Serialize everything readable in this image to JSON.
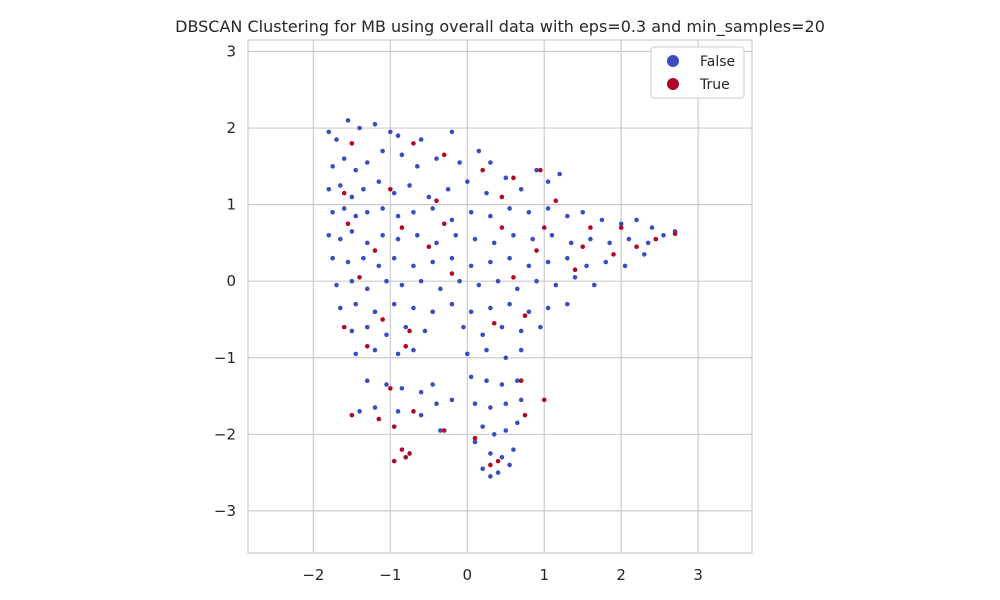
{
  "chart_data": {
    "type": "scatter",
    "title": "DBSCAN Clustering for MB using overall data with eps=0.3 and min_samples=20",
    "xlabel": "",
    "ylabel": "",
    "xlim": [
      -2.85,
      3.7
    ],
    "ylim": [
      -3.55,
      3.15
    ],
    "xticks": [
      -2,
      -1,
      0,
      1,
      2,
      3
    ],
    "yticks": [
      -3,
      -2,
      -1,
      0,
      1,
      2,
      3
    ],
    "xtick_labels": [
      "−2",
      "−1",
      "0",
      "1",
      "2",
      "3"
    ],
    "ytick_labels": [
      "−3",
      "−2",
      "−1",
      "0",
      "1",
      "2",
      "3"
    ],
    "grid": true,
    "legend_position": "top-right",
    "colors": {
      "False": "#3b4cc0",
      "True": "#b40426"
    },
    "series": [
      {
        "name": "False",
        "color": "#3b4cc0",
        "points": [
          [
            -1.8,
            1.95
          ],
          [
            -1.7,
            1.85
          ],
          [
            -1.55,
            2.1
          ],
          [
            -1.4,
            2.0
          ],
          [
            -1.2,
            2.05
          ],
          [
            -1.0,
            1.95
          ],
          [
            -0.9,
            1.9
          ],
          [
            -0.6,
            1.85
          ],
          [
            -0.2,
            1.95
          ],
          [
            -1.75,
            1.5
          ],
          [
            -1.6,
            1.6
          ],
          [
            -1.45,
            1.45
          ],
          [
            -1.3,
            1.55
          ],
          [
            -1.1,
            1.7
          ],
          [
            -0.85,
            1.65
          ],
          [
            -0.65,
            1.5
          ],
          [
            -0.4,
            1.6
          ],
          [
            -0.1,
            1.55
          ],
          [
            0.15,
            1.7
          ],
          [
            0.3,
            1.55
          ],
          [
            -1.8,
            1.2
          ],
          [
            -1.65,
            1.25
          ],
          [
            -1.5,
            1.1
          ],
          [
            -1.35,
            1.2
          ],
          [
            -1.15,
            1.3
          ],
          [
            -0.95,
            1.15
          ],
          [
            -0.75,
            1.25
          ],
          [
            -0.5,
            1.1
          ],
          [
            -0.25,
            1.2
          ],
          [
            0.0,
            1.3
          ],
          [
            0.25,
            1.15
          ],
          [
            0.5,
            1.35
          ],
          [
            0.7,
            1.2
          ],
          [
            0.9,
            1.45
          ],
          [
            1.05,
            1.3
          ],
          [
            1.2,
            1.4
          ],
          [
            -1.75,
            0.9
          ],
          [
            -1.6,
            0.95
          ],
          [
            -1.45,
            0.85
          ],
          [
            -1.3,
            0.9
          ],
          [
            -1.1,
            0.95
          ],
          [
            -0.9,
            0.85
          ],
          [
            -0.7,
            0.9
          ],
          [
            -0.45,
            0.95
          ],
          [
            -0.2,
            0.8
          ],
          [
            0.05,
            0.9
          ],
          [
            0.3,
            0.85
          ],
          [
            0.55,
            0.95
          ],
          [
            0.8,
            0.9
          ],
          [
            1.05,
            0.95
          ],
          [
            1.3,
            0.85
          ],
          [
            1.5,
            0.9
          ],
          [
            1.75,
            0.8
          ],
          [
            2.0,
            0.75
          ],
          [
            2.2,
            0.8
          ],
          [
            2.4,
            0.7
          ],
          [
            -1.8,
            0.6
          ],
          [
            -1.65,
            0.55
          ],
          [
            -1.5,
            0.65
          ],
          [
            -1.3,
            0.5
          ],
          [
            -1.1,
            0.6
          ],
          [
            -0.9,
            0.55
          ],
          [
            -0.65,
            0.6
          ],
          [
            -0.4,
            0.5
          ],
          [
            -0.15,
            0.6
          ],
          [
            0.1,
            0.55
          ],
          [
            0.35,
            0.5
          ],
          [
            0.6,
            0.6
          ],
          [
            0.85,
            0.55
          ],
          [
            1.1,
            0.6
          ],
          [
            1.35,
            0.5
          ],
          [
            1.6,
            0.55
          ],
          [
            1.85,
            0.5
          ],
          [
            2.1,
            0.55
          ],
          [
            2.35,
            0.5
          ],
          [
            2.55,
            0.6
          ],
          [
            2.7,
            0.65
          ],
          [
            -1.75,
            0.3
          ],
          [
            -1.55,
            0.25
          ],
          [
            -1.35,
            0.3
          ],
          [
            -1.15,
            0.2
          ],
          [
            -0.95,
            0.3
          ],
          [
            -0.7,
            0.2
          ],
          [
            -0.45,
            0.25
          ],
          [
            -0.2,
            0.3
          ],
          [
            0.05,
            0.2
          ],
          [
            0.3,
            0.25
          ],
          [
            0.55,
            0.3
          ],
          [
            0.8,
            0.2
          ],
          [
            1.05,
            0.25
          ],
          [
            1.3,
            0.3
          ],
          [
            1.55,
            0.2
          ],
          [
            1.8,
            0.25
          ],
          [
            2.05,
            0.2
          ],
          [
            2.3,
            0.35
          ],
          [
            -1.7,
            -0.05
          ],
          [
            -1.5,
            0.0
          ],
          [
            -1.3,
            -0.1
          ],
          [
            -1.05,
            0.0
          ],
          [
            -0.85,
            -0.05
          ],
          [
            -0.6,
            0.0
          ],
          [
            -0.35,
            -0.1
          ],
          [
            -0.1,
            0.0
          ],
          [
            0.15,
            -0.05
          ],
          [
            0.4,
            0.0
          ],
          [
            0.65,
            -0.1
          ],
          [
            0.9,
            0.0
          ],
          [
            1.15,
            -0.05
          ],
          [
            1.4,
            0.05
          ],
          [
            1.65,
            -0.05
          ],
          [
            -1.65,
            -0.35
          ],
          [
            -1.45,
            -0.3
          ],
          [
            -1.2,
            -0.4
          ],
          [
            -0.95,
            -0.3
          ],
          [
            -0.7,
            -0.35
          ],
          [
            -0.45,
            -0.4
          ],
          [
            -0.2,
            -0.3
          ],
          [
            0.05,
            -0.4
          ],
          [
            0.3,
            -0.35
          ],
          [
            0.55,
            -0.3
          ],
          [
            0.8,
            -0.4
          ],
          [
            1.05,
            -0.35
          ],
          [
            1.3,
            -0.3
          ],
          [
            -1.5,
            -0.65
          ],
          [
            -1.3,
            -0.6
          ],
          [
            -1.05,
            -0.7
          ],
          [
            -0.8,
            -0.6
          ],
          [
            -0.55,
            -0.65
          ],
          [
            -0.05,
            -0.6
          ],
          [
            0.2,
            -0.7
          ],
          [
            0.45,
            -0.6
          ],
          [
            0.7,
            -0.65
          ],
          [
            0.95,
            -0.6
          ],
          [
            -1.45,
            -0.95
          ],
          [
            -1.2,
            -0.9
          ],
          [
            -0.9,
            -0.95
          ],
          [
            -0.7,
            -0.9
          ],
          [
            0.0,
            -0.95
          ],
          [
            0.25,
            -0.9
          ],
          [
            0.5,
            -1.0
          ],
          [
            0.7,
            -0.9
          ],
          [
            -1.3,
            -1.3
          ],
          [
            -1.05,
            -1.35
          ],
          [
            -0.85,
            -1.4
          ],
          [
            -0.6,
            -1.45
          ],
          [
            -0.45,
            -1.35
          ],
          [
            0.05,
            -1.25
          ],
          [
            0.25,
            -1.3
          ],
          [
            0.45,
            -1.35
          ],
          [
            0.65,
            -1.3
          ],
          [
            -1.4,
            -1.7
          ],
          [
            -1.2,
            -1.65
          ],
          [
            -0.9,
            -1.7
          ],
          [
            -0.6,
            -1.75
          ],
          [
            -0.4,
            -1.6
          ],
          [
            -0.2,
            -1.55
          ],
          [
            0.1,
            -1.6
          ],
          [
            0.3,
            -1.65
          ],
          [
            0.5,
            -1.6
          ],
          [
            0.7,
            -1.55
          ],
          [
            -0.35,
            -1.95
          ],
          [
            0.2,
            -1.9
          ],
          [
            0.35,
            -2.0
          ],
          [
            0.5,
            -1.95
          ],
          [
            0.65,
            -1.85
          ],
          [
            0.1,
            -2.1
          ],
          [
            0.3,
            -2.25
          ],
          [
            0.45,
            -2.3
          ],
          [
            0.6,
            -2.2
          ],
          [
            0.2,
            -2.45
          ],
          [
            0.4,
            -2.5
          ],
          [
            0.55,
            -2.4
          ],
          [
            0.3,
            -2.55
          ]
        ]
      },
      {
        "name": "True",
        "color": "#b40426",
        "points": [
          [
            -1.5,
            1.8
          ],
          [
            -0.7,
            1.8
          ],
          [
            -0.3,
            1.65
          ],
          [
            0.2,
            1.45
          ],
          [
            0.6,
            1.35
          ],
          [
            0.95,
            1.45
          ],
          [
            -1.6,
            1.15
          ],
          [
            -1.0,
            1.2
          ],
          [
            -0.4,
            1.05
          ],
          [
            0.45,
            1.1
          ],
          [
            1.15,
            1.05
          ],
          [
            -1.55,
            0.75
          ],
          [
            -0.85,
            0.7
          ],
          [
            -0.3,
            0.75
          ],
          [
            0.45,
            0.7
          ],
          [
            1.0,
            0.7
          ],
          [
            1.6,
            0.7
          ],
          [
            2.0,
            0.7
          ],
          [
            2.2,
            0.45
          ],
          [
            2.45,
            0.55
          ],
          [
            2.7,
            0.62
          ],
          [
            -1.2,
            0.4
          ],
          [
            -0.5,
            0.45
          ],
          [
            0.9,
            0.4
          ],
          [
            1.5,
            0.45
          ],
          [
            1.9,
            0.35
          ],
          [
            -1.4,
            0.05
          ],
          [
            -0.2,
            0.1
          ],
          [
            0.6,
            0.05
          ],
          [
            1.4,
            0.15
          ],
          [
            -1.6,
            -0.6
          ],
          [
            -1.1,
            -0.5
          ],
          [
            -0.75,
            -0.65
          ],
          [
            0.35,
            -0.55
          ],
          [
            0.75,
            -0.45
          ],
          [
            -1.3,
            -0.85
          ],
          [
            -0.8,
            -0.85
          ],
          [
            -1.0,
            -1.4
          ],
          [
            0.7,
            -1.3
          ],
          [
            1.0,
            -1.55
          ],
          [
            -1.5,
            -1.75
          ],
          [
            -1.15,
            -1.8
          ],
          [
            -0.95,
            -1.9
          ],
          [
            -0.7,
            -1.7
          ],
          [
            -0.3,
            -1.95
          ],
          [
            0.1,
            -2.05
          ],
          [
            0.75,
            -1.75
          ],
          [
            -0.85,
            -2.2
          ],
          [
            -0.8,
            -2.3
          ],
          [
            -0.75,
            -2.25
          ],
          [
            -0.95,
            -2.35
          ],
          [
            0.3,
            -2.4
          ],
          [
            0.4,
            -2.35
          ]
        ]
      }
    ]
  }
}
